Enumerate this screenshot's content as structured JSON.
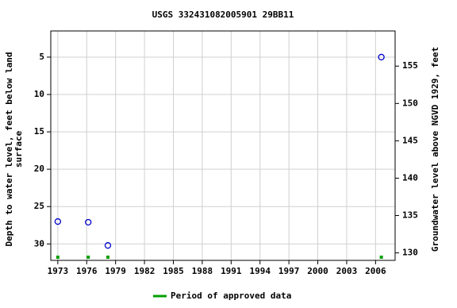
{
  "chart_data": {
    "type": "scatter",
    "title": "USGS 332431082005901 29BB11",
    "y_label": [
      "Depth to water level, feet below land",
      "surface"
    ],
    "y2_label": "Groundwater level above NGVD 1929, feet",
    "xlim": [
      1972.27,
      2008.03
    ],
    "xticks": [
      1973,
      1976,
      1979,
      1982,
      1985,
      1988,
      1991,
      1994,
      1997,
      2000,
      2003,
      2006
    ],
    "ylim": [
      1.5,
      32.2
    ],
    "yticks": [
      5,
      10,
      15,
      20,
      25,
      30
    ],
    "y_inverted": true,
    "y2lim": [
      159.7,
      129.0
    ],
    "y2ticks": [
      130,
      135,
      140,
      145,
      150,
      155
    ],
    "grid": true,
    "series": [
      {
        "color": "#0000cc",
        "x": [
          1973.0,
          1976.16,
          1978.2,
          2006.6
        ],
        "values": [
          27.0,
          27.1,
          30.2,
          5.0
        ]
      }
    ],
    "approved_periods": {
      "name": "Period of approved data",
      "color": "#00a000",
      "x": [
        1973.0,
        1976.16,
        1978.2,
        2006.6
      ]
    },
    "legend": "bottom"
  }
}
